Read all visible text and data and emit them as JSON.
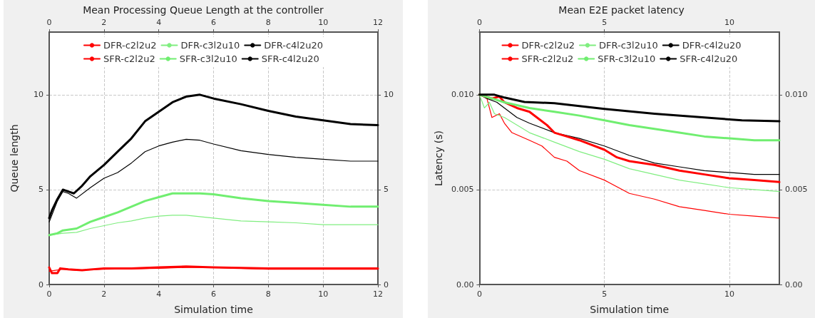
{
  "chart_data": [
    {
      "type": "line",
      "title": "Mean Processing Queue Length at the controller",
      "xlabel": "Simulation time",
      "ylabel": "Queue length",
      "xlim": [
        0,
        12
      ],
      "xticks": [
        0,
        2,
        4,
        6,
        8,
        10,
        12
      ],
      "x2lim": [
        0,
        12
      ],
      "x2ticks": [
        0,
        2,
        4,
        6,
        8,
        10,
        12
      ],
      "ylim": [
        0,
        13.3
      ],
      "yticks": [
        0,
        5,
        10
      ],
      "y2lim": [
        0,
        13.3
      ],
      "y2ticks": [
        0,
        5,
        10
      ],
      "grid": true,
      "legend": "top",
      "marker": "none",
      "line_style": "solid",
      "series": [
        {
          "name": "DFR-c2l2u2",
          "color": "#ff0000",
          "x": [
            0,
            0.5,
            1,
            2,
            4,
            5,
            6,
            8,
            10,
            12
          ],
          "values": [
            0.7,
            0.8,
            0.75,
            0.8,
            0.85,
            0.9,
            0.9,
            0.8,
            0.8,
            0.8
          ]
        },
        {
          "name": "DFR-c3l2u10",
          "color": "#80ee80",
          "x": [
            0,
            0.5,
            1,
            1.5,
            2,
            2.5,
            3,
            3.5,
            4,
            4.5,
            5,
            6,
            7,
            8,
            9,
            10,
            11,
            12
          ],
          "values": [
            2.6,
            2.7,
            2.75,
            2.95,
            3.1,
            3.25,
            3.35,
            3.5,
            3.6,
            3.65,
            3.65,
            3.5,
            3.35,
            3.3,
            3.25,
            3.15,
            3.15,
            3.15
          ]
        },
        {
          "name": "DFR-c4l2u20",
          "color": "#000000",
          "x": [
            0,
            0.3,
            0.5,
            0.7,
            1,
            1.5,
            2,
            2.5,
            3,
            3.5,
            4,
            4.5,
            5,
            5.5,
            6,
            7,
            8,
            9,
            10,
            11,
            12
          ],
          "values": [
            3.3,
            4.4,
            4.9,
            4.8,
            4.55,
            5.1,
            5.6,
            5.9,
            6.4,
            7.0,
            7.3,
            7.5,
            7.65,
            7.6,
            7.4,
            7.05,
            6.85,
            6.7,
            6.6,
            6.5,
            6.5
          ]
        },
        {
          "name": "SFR-c2l2u2",
          "color": "#ff0000",
          "x": [
            0,
            0.1,
            0.3,
            0.4,
            0.7,
            1.2,
            2,
            3,
            4,
            5,
            6,
            8,
            10,
            12
          ],
          "values": [
            0.9,
            0.6,
            0.6,
            0.85,
            0.8,
            0.75,
            0.85,
            0.85,
            0.9,
            0.95,
            0.9,
            0.85,
            0.85,
            0.85
          ]
        },
        {
          "name": "SFR-c3l2u10",
          "color": "#70ee70",
          "x": [
            0,
            0.3,
            0.5,
            1,
            1.5,
            2,
            2.5,
            3,
            3.5,
            4,
            4.5,
            5,
            5.5,
            6,
            7,
            8,
            9,
            10,
            11,
            12
          ],
          "values": [
            2.6,
            2.7,
            2.85,
            2.95,
            3.3,
            3.55,
            3.8,
            4.1,
            4.4,
            4.6,
            4.8,
            4.8,
            4.8,
            4.75,
            4.55,
            4.4,
            4.3,
            4.2,
            4.1,
            4.1
          ]
        },
        {
          "name": "SFR-c4l2u20",
          "color": "#000000",
          "x": [
            0,
            0.1,
            0.3,
            0.5,
            0.7,
            0.9,
            1.2,
            1.5,
            2,
            2.5,
            3,
            3.5,
            4,
            4.5,
            5,
            5.5,
            6,
            7,
            8,
            9,
            10,
            11,
            12
          ],
          "values": [
            3.5,
            3.9,
            4.5,
            5.0,
            4.9,
            4.8,
            5.2,
            5.7,
            6.3,
            7.0,
            7.7,
            8.6,
            9.1,
            9.6,
            9.9,
            10.0,
            9.8,
            9.5,
            9.15,
            8.85,
            8.65,
            8.45,
            8.4
          ]
        }
      ]
    },
    {
      "type": "line",
      "title": "Mean E2E packet latency",
      "xlabel": "Simulation time",
      "ylabel": "Latency (s)",
      "xlim": [
        0,
        12
      ],
      "xticks": [
        0,
        5,
        10
      ],
      "x2lim": [
        0,
        12
      ],
      "x2ticks": [
        0,
        5,
        10
      ],
      "ylim": [
        0,
        0.0133
      ],
      "yticks": [
        {
          "value": 0,
          "label": "0.00"
        },
        {
          "value": 0.005,
          "label": "0.005"
        },
        {
          "value": 0.01,
          "label": "0.010"
        }
      ],
      "y2lim": [
        0,
        0.0133
      ],
      "y2ticks": [
        {
          "value": 0,
          "label": "0.00"
        },
        {
          "value": 0.005,
          "label": "0.005"
        },
        {
          "value": 0.01,
          "label": "0.010"
        }
      ],
      "grid": true,
      "legend": "top",
      "marker": "none",
      "line_style": "solid",
      "series": [
        {
          "name": "DFR-c2l2u2",
          "color": "#ff0000",
          "x": [
            0,
            0.3,
            0.5,
            0.8,
            1,
            1.3,
            2,
            2.5,
            3,
            3.5,
            4,
            5,
            6,
            7,
            8,
            9,
            10,
            11,
            12
          ],
          "values": [
            0.01,
            0.0098,
            0.0088,
            0.009,
            0.0085,
            0.008,
            0.0076,
            0.0073,
            0.0067,
            0.0065,
            0.006,
            0.0055,
            0.0048,
            0.0045,
            0.0041,
            0.0039,
            0.0037,
            0.0036,
            0.0035
          ]
        },
        {
          "name": "DFR-c3l2u10",
          "color": "#80ee80",
          "x": [
            0,
            0.2,
            0.4,
            0.6,
            1,
            2,
            3,
            4,
            5,
            6,
            7,
            8,
            9,
            10,
            11,
            12
          ],
          "values": [
            0.01,
            0.0093,
            0.0096,
            0.009,
            0.0088,
            0.008,
            0.0075,
            0.007,
            0.0066,
            0.0061,
            0.0058,
            0.0055,
            0.0053,
            0.0051,
            0.005,
            0.0049
          ]
        },
        {
          "name": "DFR-c4l2u20",
          "color": "#000000",
          "x": [
            0,
            0.3,
            0.7,
            1,
            1.5,
            2,
            3,
            4,
            5,
            6,
            7,
            8,
            9,
            10,
            11,
            12
          ],
          "values": [
            0.01,
            0.0098,
            0.0096,
            0.0093,
            0.0088,
            0.0085,
            0.008,
            0.0077,
            0.0073,
            0.0068,
            0.0064,
            0.0062,
            0.006,
            0.0059,
            0.0058,
            0.0058
          ]
        },
        {
          "name": "SFR-c2l2u2",
          "color": "#ff0000",
          "x": [
            0,
            0.5,
            0.8,
            1,
            1.5,
            2,
            2.7,
            3,
            3.5,
            4,
            5,
            5.5,
            6,
            7,
            8,
            9,
            10,
            11,
            12
          ],
          "values": [
            0.01,
            0.0098,
            0.0099,
            0.0096,
            0.0093,
            0.0091,
            0.0084,
            0.008,
            0.0078,
            0.0076,
            0.0071,
            0.0067,
            0.0065,
            0.0063,
            0.006,
            0.0058,
            0.0056,
            0.0055,
            0.0054
          ]
        },
        {
          "name": "SFR-c3l2u10",
          "color": "#70ee70",
          "x": [
            0,
            0.5,
            1,
            2,
            3,
            4,
            5,
            6,
            7,
            8,
            9,
            10,
            11,
            12
          ],
          "values": [
            0.01,
            0.0098,
            0.0096,
            0.0093,
            0.0091,
            0.0089,
            0.00865,
            0.0084,
            0.0082,
            0.008,
            0.0078,
            0.0077,
            0.0076,
            0.0076
          ]
        },
        {
          "name": "SFR-c4l2u20",
          "color": "#000000",
          "x": [
            0,
            0.6,
            1,
            1.8,
            3,
            5,
            7,
            9,
            10.5,
            12
          ],
          "values": [
            0.01,
            0.01,
            0.00985,
            0.00962,
            0.00955,
            0.00925,
            0.009,
            0.0088,
            0.00865,
            0.0086
          ]
        }
      ]
    }
  ]
}
